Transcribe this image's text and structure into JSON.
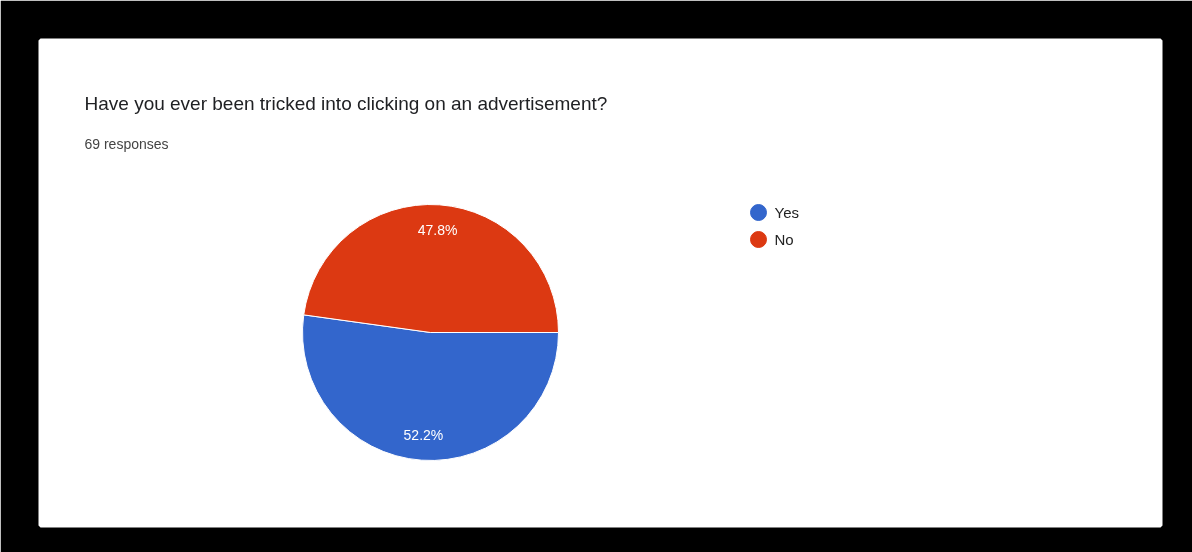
{
  "chart_data": {
    "type": "pie",
    "title": "Have you ever been tricked into clicking on an advertisement?",
    "subtitle": "69 responses",
    "categories": [
      "Yes",
      "No"
    ],
    "values": [
      52.2,
      47.8
    ],
    "colors": [
      "#3366cc",
      "#dc3912"
    ],
    "value_labels": [
      "52.2%",
      "47.8%"
    ],
    "legend": "right"
  }
}
